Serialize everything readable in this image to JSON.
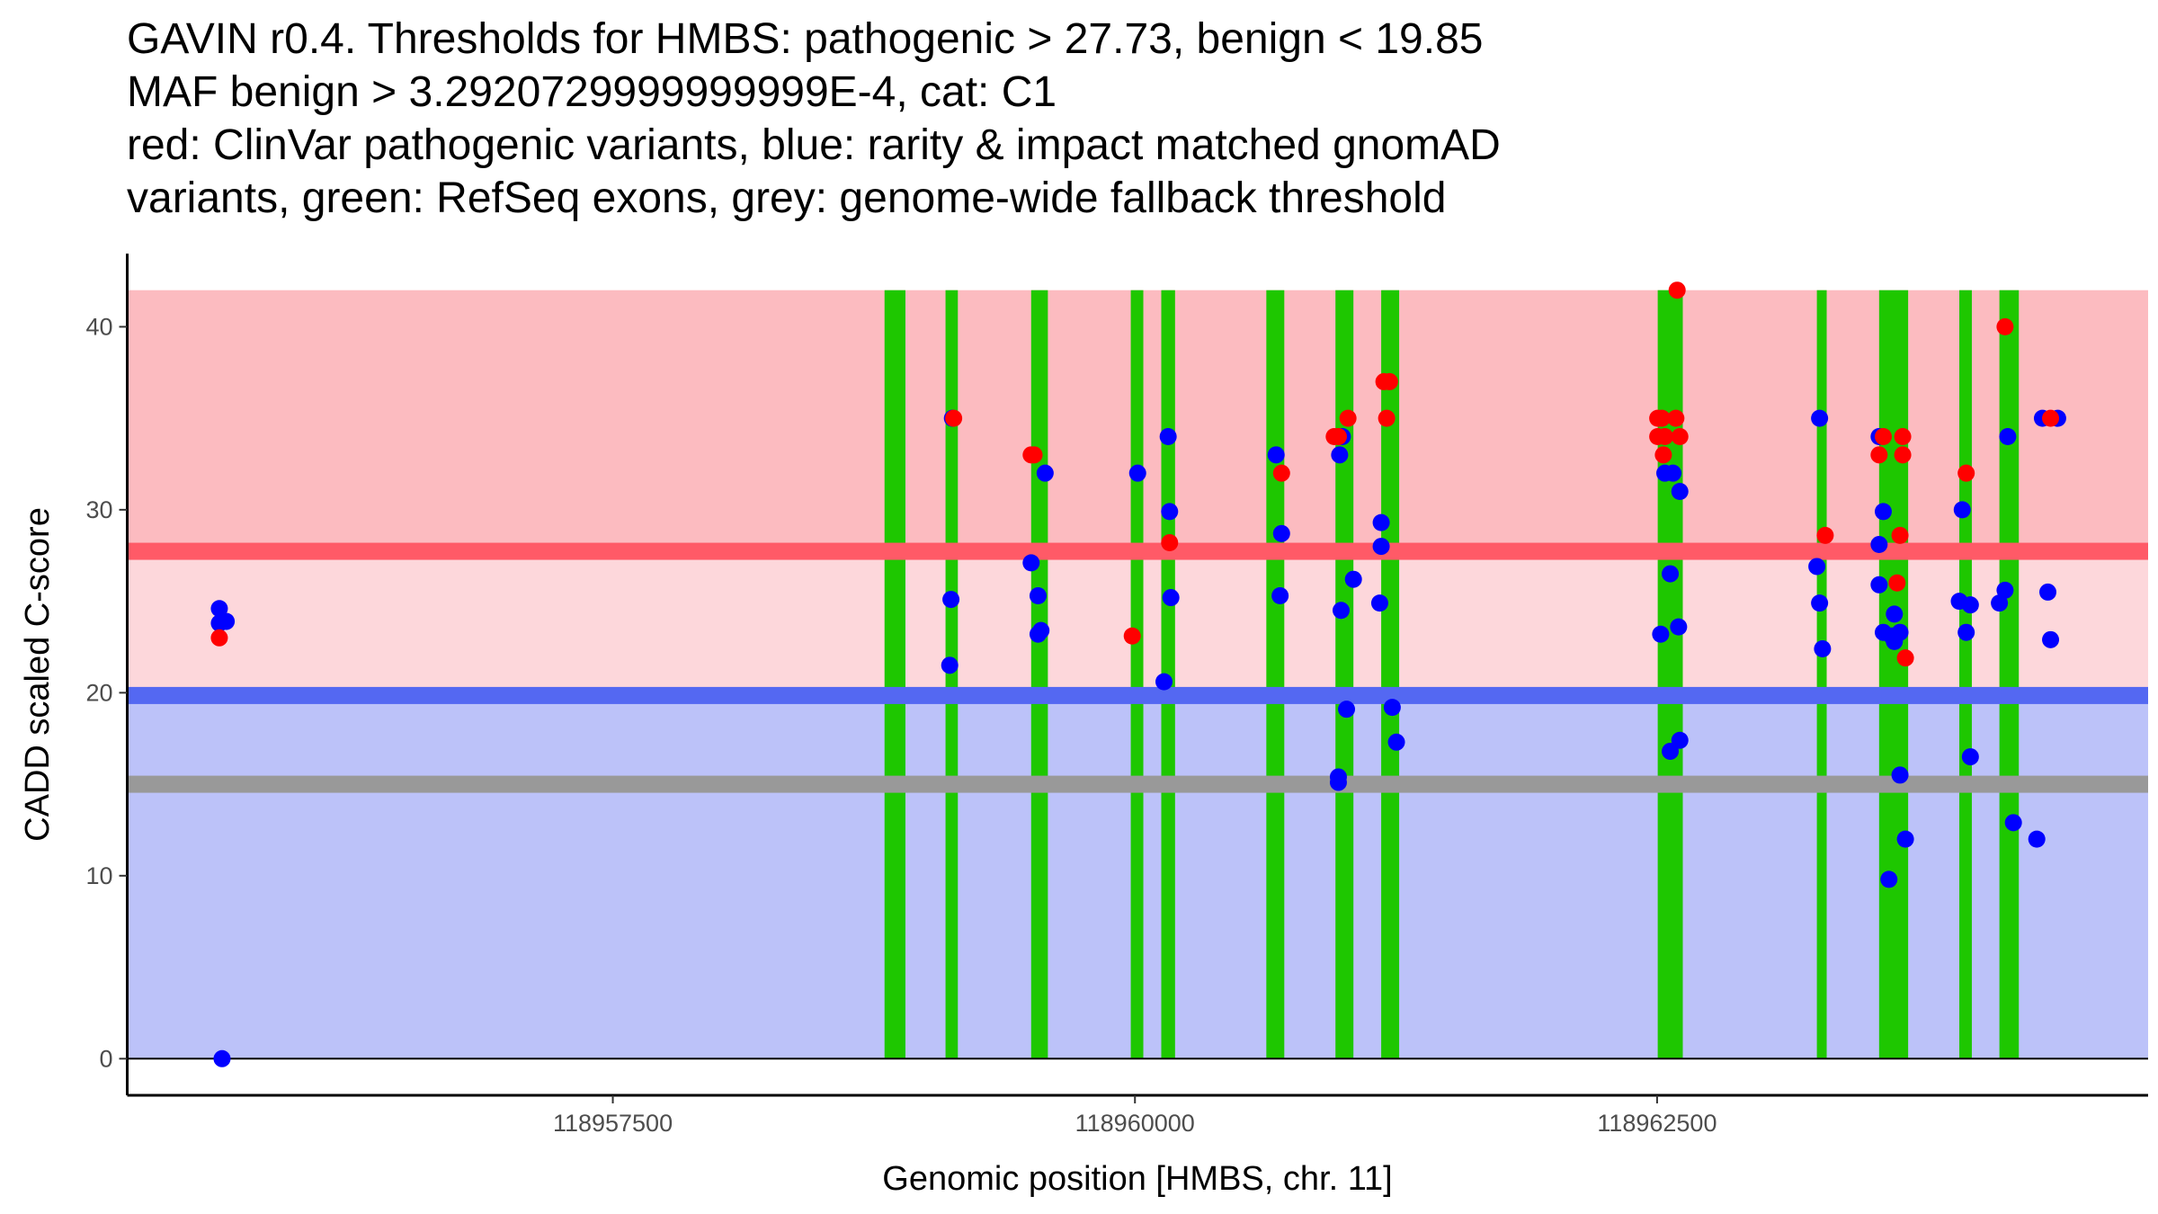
{
  "chart_data": {
    "type": "scatter",
    "title_lines": [
      "GAVIN r0.4. Thresholds for HMBS: pathogenic > 27.73, benign < 19.85",
      "MAF benign > 3.2920729999999999E-4, cat: C1",
      "red: ClinVar pathogenic variants, blue: rarity & impact matched gnomAD",
      "variants, green: RefSeq exons, grey: genome-wide fallback threshold"
    ],
    "xlabel": "Genomic position [HMBS, chr. 11]",
    "ylabel": "CADD scaled C-score",
    "xlim": [
      118955175,
      118964851
    ],
    "ylim": [
      -2.0,
      44
    ],
    "xticks": [
      118957500,
      118960000,
      118962500
    ],
    "xtick_labels": [
      "118957500",
      "118960000",
      "118962500"
    ],
    "yticks": [
      0,
      10,
      20,
      30,
      40
    ],
    "ytick_labels": [
      "0",
      "10",
      "20",
      "30",
      "40"
    ],
    "grid": false,
    "thresholds": {
      "pathogenic": 27.73,
      "benign": 19.85,
      "fallback": 15,
      "max": 42
    },
    "colors": {
      "pathogenic_zone": "#fcbbc0",
      "middle_zone": "#fdd7db",
      "benign_zone": "#bcc2f9",
      "pathogenic_line": "#ff5a67",
      "benign_line": "#5468f2",
      "fallback_line": "#999999",
      "exon": "#1ec700",
      "pathogenic_point": "#ff0000",
      "benign_point": "#0000ff"
    },
    "exons": [
      [
        118958801,
        118958901
      ],
      [
        118959093,
        118959152
      ],
      [
        118959503,
        118959583
      ],
      [
        118959980,
        118960040
      ],
      [
        118960126,
        118960192
      ],
      [
        118960629,
        118960715
      ],
      [
        118960960,
        118961046
      ],
      [
        118961179,
        118961265
      ],
      [
        118962503,
        118962623
      ],
      [
        118963265,
        118963312
      ],
      [
        118963563,
        118963702
      ],
      [
        118963947,
        118964007
      ],
      [
        118964139,
        118964232
      ]
    ],
    "series": [
      {
        "name": "gnomAD matched (blue)",
        "color_key": "benign_point",
        "points": [
          [
            118955616,
            24.6
          ],
          [
            118955616,
            23.8
          ],
          [
            118955649,
            23.9
          ],
          [
            118955629,
            0
          ],
          [
            118959126,
            35
          ],
          [
            118959119,
            25.1
          ],
          [
            118959113,
            21.5
          ],
          [
            118959570,
            32
          ],
          [
            118959503,
            27.1
          ],
          [
            118959536,
            25.3
          ],
          [
            118959536,
            23.2
          ],
          [
            118959550,
            23.4
          ],
          [
            118960013,
            32
          ],
          [
            118960159,
            34
          ],
          [
            118960166,
            29.9
          ],
          [
            118960172,
            25.2
          ],
          [
            118960139,
            20.6
          ],
          [
            118960676,
            33
          ],
          [
            118960702,
            28.7
          ],
          [
            118960695,
            25.3
          ],
          [
            118960993,
            34
          ],
          [
            118960980,
            33
          ],
          [
            118960987,
            24.5
          ],
          [
            118961046,
            26.2
          ],
          [
            118961013,
            19.1
          ],
          [
            118960974,
            15.4
          ],
          [
            118960974,
            15.1
          ],
          [
            118961179,
            29.3
          ],
          [
            118961179,
            28
          ],
          [
            118961172,
            24.9
          ],
          [
            118961232,
            19.2
          ],
          [
            118961252,
            17.3
          ],
          [
            118962537,
            32
          ],
          [
            118962576,
            32
          ],
          [
            118962609,
            31
          ],
          [
            118962563,
            26.5
          ],
          [
            118962517,
            23.2
          ],
          [
            118962603,
            23.6
          ],
          [
            118962609,
            17.4
          ],
          [
            118962563,
            16.8
          ],
          [
            118963278,
            35
          ],
          [
            118963265,
            26.9
          ],
          [
            118963278,
            24.9
          ],
          [
            118963292,
            22.4
          ],
          [
            118963563,
            34
          ],
          [
            118963583,
            29.9
          ],
          [
            118963563,
            28.1
          ],
          [
            118963563,
            25.9
          ],
          [
            118963636,
            24.3
          ],
          [
            118963583,
            23.3
          ],
          [
            118963623,
            23.1
          ],
          [
            118963663,
            23.3
          ],
          [
            118963636,
            22.8
          ],
          [
            118963663,
            15.5
          ],
          [
            118963689,
            12
          ],
          [
            118963610,
            9.8
          ],
          [
            118963961,
            30
          ],
          [
            118963947,
            25
          ],
          [
            118964000,
            24.8
          ],
          [
            118963980,
            23.3
          ],
          [
            118964000,
            16.5
          ],
          [
            118964179,
            34
          ],
          [
            118964166,
            25.6
          ],
          [
            118964139,
            24.9
          ],
          [
            118964206,
            12.9
          ],
          [
            118964318,
            12
          ],
          [
            118964345,
            35
          ],
          [
            118964418,
            35
          ],
          [
            118964371,
            25.5
          ],
          [
            118964384,
            22.9
          ]
        ]
      },
      {
        "name": "ClinVar pathogenic (red)",
        "color_key": "pathogenic_point",
        "points": [
          [
            118955616,
            23.0
          ],
          [
            118959132,
            35
          ],
          [
            118959503,
            33
          ],
          [
            118959517,
            33
          ],
          [
            118959987,
            23.1
          ],
          [
            118960166,
            28.2
          ],
          [
            118960702,
            32
          ],
          [
            118960954,
            34
          ],
          [
            118960974,
            34
          ],
          [
            118961020,
            35
          ],
          [
            118961192,
            37
          ],
          [
            118961219,
            37
          ],
          [
            118961205,
            35
          ],
          [
            118962503,
            35
          ],
          [
            118962523,
            35
          ],
          [
            118962590,
            35
          ],
          [
            118962503,
            34
          ],
          [
            118962537,
            34
          ],
          [
            118962609,
            34
          ],
          [
            118962530,
            33
          ],
          [
            118962596,
            42
          ],
          [
            118963305,
            28.6
          ],
          [
            118963583,
            34
          ],
          [
            118963676,
            34
          ],
          [
            118963563,
            33
          ],
          [
            118963676,
            33
          ],
          [
            118963663,
            28.6
          ],
          [
            118963649,
            26
          ],
          [
            118963689,
            21.9
          ],
          [
            118963980,
            32
          ],
          [
            118964166,
            40
          ],
          [
            118964384,
            35
          ]
        ]
      }
    ]
  }
}
